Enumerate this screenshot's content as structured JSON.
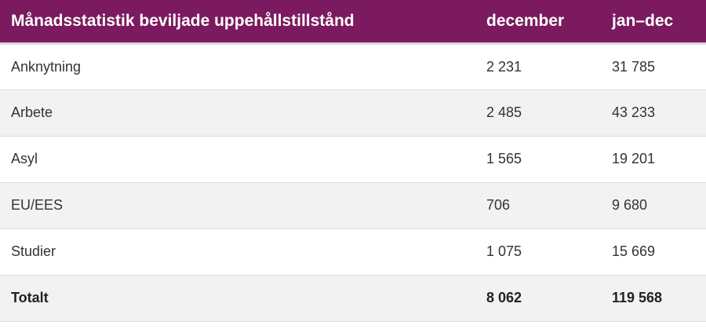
{
  "table": {
    "headers": {
      "category": "Månadsstatistik beviljade uppehållstillstånd",
      "december": "december",
      "year": "jan–dec"
    },
    "rows": [
      {
        "category": "Anknytning",
        "december": "2 231",
        "year": "31 785"
      },
      {
        "category": "Arbete",
        "december": "2 485",
        "year": "43 233"
      },
      {
        "category": "Asyl",
        "december": "1 565",
        "year": "19 201"
      },
      {
        "category": "EU/EES",
        "december": "706",
        "year": "9 680"
      },
      {
        "category": "Studier",
        "december": "1 075",
        "year": "15 669"
      }
    ],
    "total": {
      "category": "Totalt",
      "december": "8 062",
      "year": "119 568"
    }
  },
  "colors": {
    "header_background": "#7b1a5f",
    "header_text": "#ffffff",
    "stripe_background": "#f2f2f2"
  }
}
